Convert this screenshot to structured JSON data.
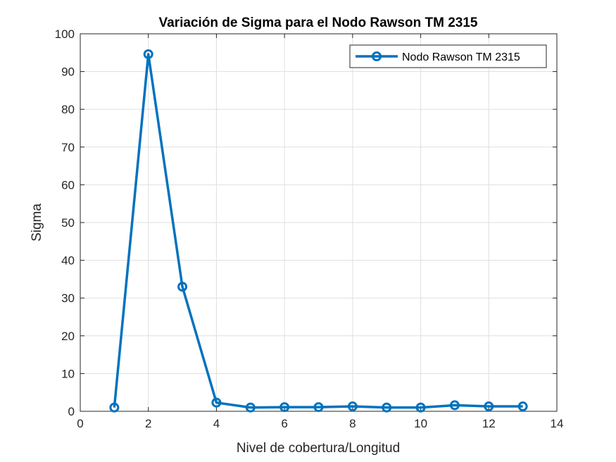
{
  "chart_data": {
    "type": "line",
    "title": "Variación de Sigma para el Nodo Rawson TM 2315",
    "xlabel": "Nivel de cobertura/Longitud",
    "ylabel": "Sigma",
    "xlim": [
      0,
      14
    ],
    "ylim": [
      0,
      100
    ],
    "xticks": [
      0,
      2,
      4,
      6,
      8,
      10,
      12,
      14
    ],
    "yticks": [
      0,
      10,
      20,
      30,
      40,
      50,
      60,
      70,
      80,
      90,
      100
    ],
    "grid": true,
    "legend_position": "top-right",
    "series": [
      {
        "name": "Nodo Rawson TM 2315",
        "color": "#0072BD",
        "marker": "circle",
        "x": [
          1,
          2,
          3,
          4,
          5,
          6,
          7,
          8,
          9,
          10,
          11,
          12,
          13
        ],
        "y": [
          1.0,
          94.6,
          33.0,
          2.3,
          1.0,
          1.1,
          1.1,
          1.3,
          1.0,
          1.0,
          1.6,
          1.3,
          1.3
        ]
      }
    ]
  }
}
